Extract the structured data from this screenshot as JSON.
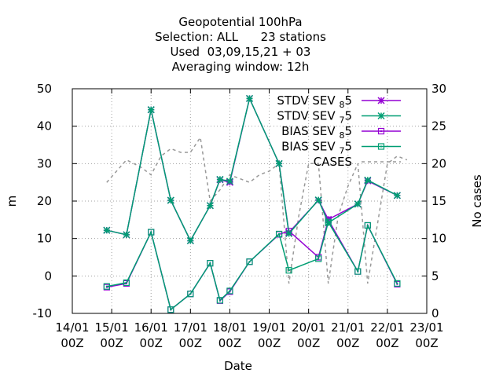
{
  "chart_data": {
    "type": "line",
    "title_lines": [
      "Geopotential 100hPa",
      "Selection: ALL      23 stations",
      "Used  03,09,15,21 + 03",
      "Averaging window: 12h"
    ],
    "xlabel": "Date",
    "ylabel": "m",
    "y2label": "No cases",
    "x_ticks": [
      {
        "day": 0,
        "l1": "14/01",
        "l2": "00Z"
      },
      {
        "day": 1,
        "l1": "15/01",
        "l2": "00Z"
      },
      {
        "day": 2,
        "l1": "16/01",
        "l2": "00Z"
      },
      {
        "day": 3,
        "l1": "17/01",
        "l2": "00Z"
      },
      {
        "day": 4,
        "l1": "18/01",
        "l2": "00Z"
      },
      {
        "day": 5,
        "l1": "19/01",
        "l2": "00Z"
      },
      {
        "day": 6,
        "l1": "20/01",
        "l2": "00Z"
      },
      {
        "day": 7,
        "l1": "21/01",
        "l2": "00Z"
      },
      {
        "day": 8,
        "l1": "22/01",
        "l2": "00Z"
      },
      {
        "day": 9,
        "l1": "23/01",
        "l2": "00Z"
      }
    ],
    "xlim": [
      0,
      9
    ],
    "ylim": [
      -10,
      50
    ],
    "y_ticks": [
      -10,
      0,
      10,
      20,
      30,
      40,
      50
    ],
    "y2lim": [
      0,
      30
    ],
    "y2_ticks": [
      0,
      5,
      10,
      15,
      20,
      25,
      30
    ],
    "legend_position": "top-right",
    "x": [
      0.875,
      1.375,
      2.0,
      2.5,
      3.0,
      3.5,
      3.75,
      4.0,
      4.5,
      5.25,
      5.5,
      6.25,
      6.5,
      7.25,
      7.5,
      8.25
    ],
    "series": [
      {
        "name": "STDV SEV 85",
        "name_main": "STDV SEV",
        "name_sub": "8",
        "name_tail": "5",
        "axis": "y1",
        "color": "#9400d3",
        "marker": "x",
        "values": [
          12.2,
          11.0,
          44.4,
          20.2,
          9.4,
          18.8,
          25.7,
          25.0,
          47.4,
          30.0,
          11.6,
          20.2,
          15.1,
          19.2,
          25.4,
          21.5
        ]
      },
      {
        "name": "STDV SEV 75",
        "name_main": "STDV SEV",
        "name_sub": "7",
        "name_tail": "5",
        "axis": "y1",
        "color": "#009e73",
        "marker": "x",
        "values": [
          12.2,
          11.0,
          44.4,
          20.2,
          9.4,
          18.8,
          25.8,
          25.3,
          47.4,
          30.0,
          11.3,
          20.3,
          14.2,
          19.2,
          25.6,
          21.5
        ]
      },
      {
        "name": "BIAS SEV 85",
        "name_main": "BIAS SEV",
        "name_sub": "8",
        "name_tail": "5",
        "axis": "y1",
        "color": "#9400d3",
        "marker": "square",
        "values": [
          -3.0,
          -2.0,
          11.7,
          -9.0,
          -4.8,
          3.4,
          -6.6,
          -4.2,
          3.8,
          11.1,
          12.0,
          5.0,
          15.0,
          1.2,
          13.5,
          -2.2
        ]
      },
      {
        "name": "BIAS SEV 75",
        "name_main": "BIAS SEV",
        "name_sub": "7",
        "name_tail": "5",
        "axis": "y1",
        "color": "#009e73",
        "marker": "square",
        "values": [
          -2.8,
          -1.8,
          11.7,
          -9.0,
          -4.8,
          3.4,
          -6.5,
          -4.0,
          3.8,
          11.2,
          1.5,
          4.6,
          14.4,
          1.2,
          13.5,
          -2.0
        ]
      },
      {
        "name": "CASES",
        "name_main": "CASES",
        "name_sub": "",
        "name_tail": "",
        "axis": "y2",
        "color": "#999999",
        "marker": "none",
        "x": [
          0.875,
          1.375,
          1.75,
          2.0,
          2.25,
          2.5,
          2.75,
          3.0,
          3.25,
          3.5,
          3.75,
          4.0,
          4.25,
          4.5,
          4.75,
          5.0,
          5.25,
          5.5,
          5.75,
          6.0,
          6.25,
          6.5,
          6.75,
          7.0,
          7.25,
          7.5,
          7.75,
          8.0,
          8.25,
          8.5
        ],
        "values": [
          17.5,
          20.5,
          19.5,
          18.5,
          21.0,
          22.0,
          21.5,
          21.5,
          23.5,
          15.0,
          16.5,
          18.5,
          18.0,
          17.5,
          18.5,
          19.0,
          20.0,
          4.0,
          13.0,
          20.0,
          20.0,
          4.0,
          13.0,
          17.0,
          20.0,
          4.0,
          12.0,
          20.0,
          21.0,
          20.5
        ]
      }
    ]
  }
}
